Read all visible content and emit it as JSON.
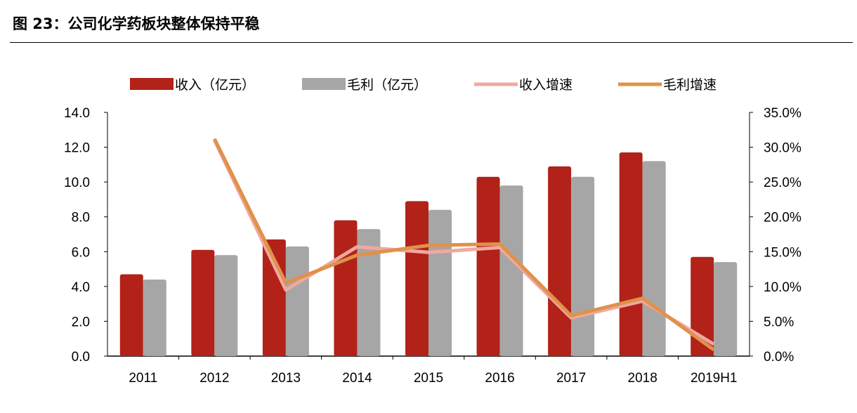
{
  "header": {
    "title": "图 23：公司化学药板块整体保持平稳"
  },
  "chart_data": {
    "type": "bar+line",
    "title": "",
    "categories": [
      "2011",
      "2012",
      "2013",
      "2014",
      "2015",
      "2016",
      "2017",
      "2018",
      "2019H1"
    ],
    "series": [
      {
        "name": "收入（亿元）",
        "type": "bar",
        "axis": "left",
        "color": "#B22218",
        "values": [
          4.7,
          6.1,
          6.7,
          7.8,
          8.9,
          10.3,
          10.9,
          11.7,
          5.7
        ]
      },
      {
        "name": "毛利（亿元）",
        "type": "bar",
        "axis": "left",
        "color": "#A6A6A6",
        "values": [
          4.4,
          5.8,
          6.3,
          7.3,
          8.4,
          9.8,
          10.3,
          11.2,
          5.4
        ]
      },
      {
        "name": "收入增速",
        "type": "line",
        "axis": "right",
        "color": "#F0A8A0",
        "values": [
          null,
          31.0,
          9.5,
          15.7,
          14.9,
          15.6,
          5.5,
          7.9,
          1.7
        ]
      },
      {
        "name": "毛利增速",
        "type": "line",
        "axis": "right",
        "color": "#E0914A",
        "values": [
          null,
          31.2,
          10.5,
          14.5,
          15.9,
          16.1,
          5.8,
          8.3,
          0.9
        ]
      }
    ],
    "left_axis": {
      "ylim": [
        0,
        14
      ],
      "ticks": [
        "0.0",
        "2.0",
        "4.0",
        "6.0",
        "8.0",
        "10.0",
        "12.0",
        "14.0"
      ]
    },
    "right_axis": {
      "ylim": [
        0,
        35
      ],
      "ticks": [
        "0.0%",
        "5.0%",
        "10.0%",
        "15.0%",
        "20.0%",
        "25.0%",
        "30.0%",
        "35.0%"
      ]
    },
    "legend": "top",
    "grid": false
  }
}
